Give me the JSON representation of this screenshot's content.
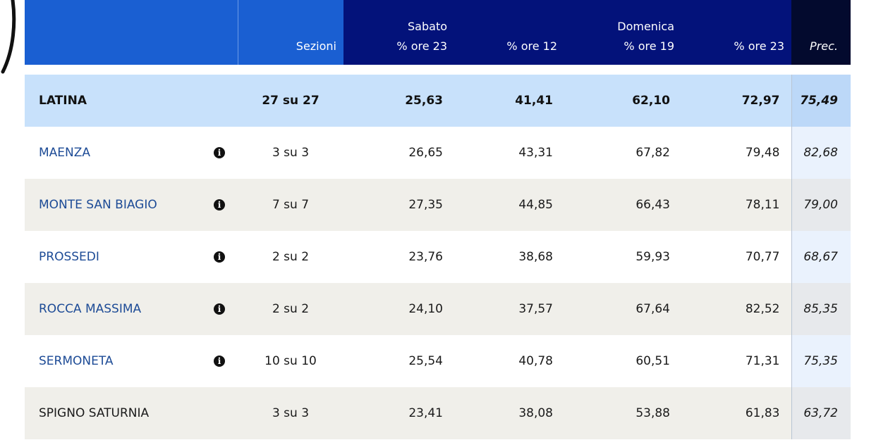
{
  "header": {
    "sezioni": "Sezioni",
    "sabato": "Sabato",
    "domenica": "Domenica",
    "sab_ore23": "% ore 23",
    "dom_ore12": "% ore 12",
    "dom_ore19": "% ore 19",
    "dom_ore23": "% ore 23",
    "prec": "Prec."
  },
  "icons": {
    "info": "info-circle-icon",
    "info_glyph": "i"
  },
  "colors": {
    "header_blue": "#1a5fd2",
    "header_navy": "#03127a",
    "header_dark": "#030a2e",
    "summary_bg": "#c8e1fb",
    "link_blue": "#1d4b96"
  },
  "summary": {
    "name": "LATINA",
    "sezioni": "27 su 27",
    "sab23": "25,63",
    "dom12": "41,41",
    "dom19": "62,10",
    "dom23": "72,97",
    "prec": "75,49"
  },
  "rows": [
    {
      "name": "MAENZA",
      "sezioni": "3 su 3",
      "sab23": "26,65",
      "dom12": "43,31",
      "dom19": "67,82",
      "dom23": "79,48",
      "prec": "82,68"
    },
    {
      "name": "MONTE SAN BIAGIO",
      "sezioni": "7 su 7",
      "sab23": "27,35",
      "dom12": "44,85",
      "dom19": "66,43",
      "dom23": "78,11",
      "prec": "79,00"
    },
    {
      "name": "PROSSEDI",
      "sezioni": "2 su 2",
      "sab23": "23,76",
      "dom12": "38,68",
      "dom19": "59,93",
      "dom23": "70,77",
      "prec": "68,67"
    },
    {
      "name": "ROCCA MASSIMA",
      "sezioni": "2 su 2",
      "sab23": "24,10",
      "dom12": "37,57",
      "dom19": "67,64",
      "dom23": "82,52",
      "prec": "85,35"
    },
    {
      "name": "SERMONETA",
      "sezioni": "10 su 10",
      "sab23": "25,54",
      "dom12": "40,78",
      "dom19": "60,51",
      "dom23": "71,31",
      "prec": "75,35"
    },
    {
      "name": "SPIGNO SATURNIA",
      "sezioni": "3 su 3",
      "sab23": "23,41",
      "dom12": "38,08",
      "dom19": "53,88",
      "dom23": "61,83",
      "prec": "63,72"
    }
  ]
}
